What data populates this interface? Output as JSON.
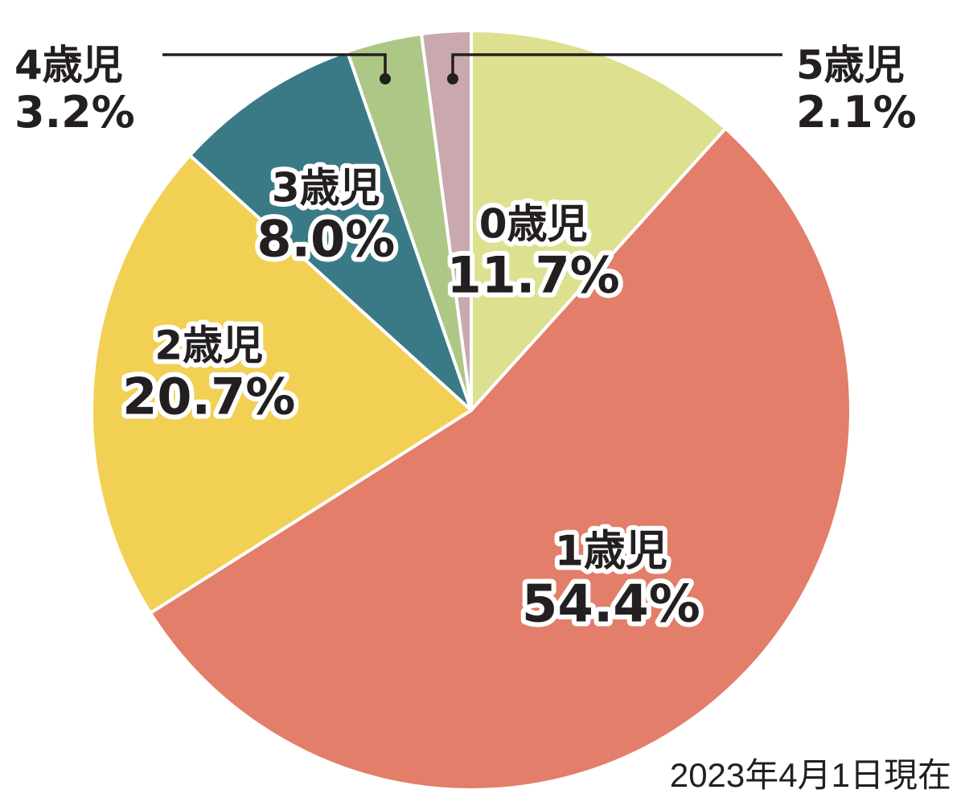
{
  "chart_data": {
    "type": "pie",
    "start": "top",
    "direction": "clockwise",
    "note": "2023年4月1日現在",
    "slices": [
      {
        "label": "0歳児",
        "value_label": "11.7%",
        "value": 11.7,
        "color": "#dde08e"
      },
      {
        "label": "1歳児",
        "value_label": "54.4%",
        "value": 54.4,
        "color": "#e27e6a"
      },
      {
        "label": "2歳児",
        "value_label": "20.7%",
        "value": 20.7,
        "color": "#f2d053"
      },
      {
        "label": "3歳児",
        "value_label": "8.0%",
        "value": 8.0,
        "color": "#3a7a87"
      },
      {
        "label": "4歳児",
        "value_label": "3.2%",
        "value": 3.2,
        "color": "#adc787"
      },
      {
        "label": "5歳児",
        "value_label": "2.1%",
        "value": 2.1,
        "color": "#c9a9ae"
      }
    ]
  }
}
